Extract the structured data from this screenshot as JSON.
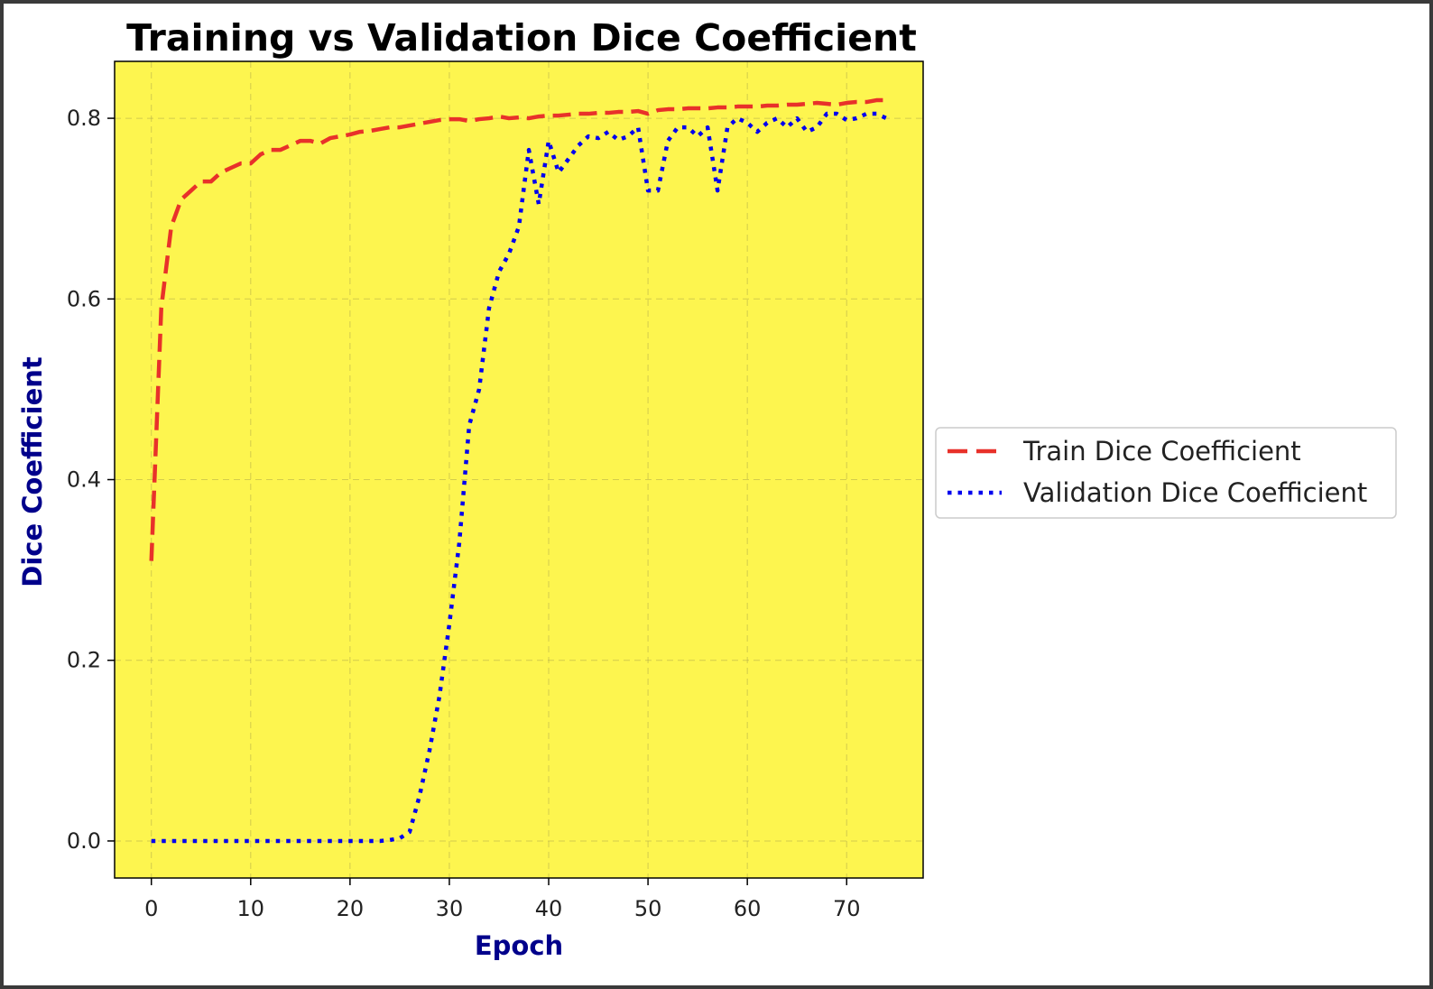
{
  "chart_data": {
    "type": "line",
    "title": "Training vs Validation Dice Coefficient",
    "xlabel": "Epoch",
    "ylabel": "Dice Coefficient",
    "xlim": [
      -3.7,
      77.7
    ],
    "ylim": [
      -0.041,
      0.863
    ],
    "xticks": [
      0,
      10,
      20,
      30,
      40,
      50,
      60,
      70
    ],
    "yticks": [
      0.0,
      0.2,
      0.4,
      0.6,
      0.8
    ],
    "ytick_labels": [
      "0.0",
      "0.2",
      "0.4",
      "0.6",
      "0.8"
    ],
    "grid": true,
    "background_color": "#fdf54f",
    "legend": {
      "placement": "outside-right"
    },
    "x": [
      0,
      1,
      2,
      3,
      4,
      5,
      6,
      7,
      8,
      9,
      10,
      11,
      12,
      13,
      14,
      15,
      16,
      17,
      18,
      19,
      20,
      21,
      22,
      23,
      24,
      25,
      26,
      27,
      28,
      29,
      30,
      31,
      32,
      33,
      34,
      35,
      36,
      37,
      38,
      39,
      40,
      41,
      42,
      43,
      44,
      45,
      46,
      47,
      48,
      49,
      50,
      51,
      52,
      53,
      54,
      55,
      56,
      57,
      58,
      59,
      60,
      61,
      62,
      63,
      64,
      65,
      66,
      67,
      68,
      69,
      70,
      71,
      72,
      73,
      74
    ],
    "series": [
      {
        "name": "Train Dice Coefficient",
        "color": "#e8312a",
        "dash": "dashed",
        "values": [
          0.31,
          0.59,
          0.68,
          0.71,
          0.72,
          0.73,
          0.73,
          0.74,
          0.745,
          0.75,
          0.75,
          0.76,
          0.765,
          0.765,
          0.77,
          0.775,
          0.775,
          0.772,
          0.778,
          0.78,
          0.782,
          0.785,
          0.786,
          0.788,
          0.79,
          0.79,
          0.792,
          0.794,
          0.796,
          0.798,
          0.799,
          0.799,
          0.797,
          0.799,
          0.8,
          0.802,
          0.8,
          0.801,
          0.8,
          0.802,
          0.803,
          0.803,
          0.804,
          0.805,
          0.805,
          0.806,
          0.806,
          0.807,
          0.807,
          0.808,
          0.805,
          0.809,
          0.81,
          0.81,
          0.811,
          0.811,
          0.811,
          0.812,
          0.812,
          0.813,
          0.813,
          0.813,
          0.814,
          0.814,
          0.815,
          0.815,
          0.816,
          0.817,
          0.816,
          0.815,
          0.817,
          0.818,
          0.818,
          0.82,
          0.82
        ]
      },
      {
        "name": "Validation Dice Coefficient",
        "color": "#0000ee",
        "dash": "dotted",
        "values": [
          0,
          0,
          0,
          0,
          0,
          0,
          0,
          0,
          0,
          0,
          0,
          0,
          0,
          0,
          0,
          0,
          0,
          0,
          0,
          0,
          0,
          0,
          0,
          0,
          0.001,
          0.003,
          0.01,
          0.05,
          0.1,
          0.16,
          0.24,
          0.33,
          0.46,
          0.5,
          0.59,
          0.63,
          0.65,
          0.68,
          0.765,
          0.705,
          0.775,
          0.74,
          0.755,
          0.77,
          0.78,
          0.778,
          0.785,
          0.776,
          0.78,
          0.79,
          0.72,
          0.72,
          0.775,
          0.79,
          0.79,
          0.78,
          0.79,
          0.72,
          0.79,
          0.8,
          0.795,
          0.785,
          0.795,
          0.8,
          0.79,
          0.8,
          0.785,
          0.79,
          0.805,
          0.805,
          0.798,
          0.8,
          0.805,
          0.805,
          0.8
        ]
      }
    ]
  }
}
